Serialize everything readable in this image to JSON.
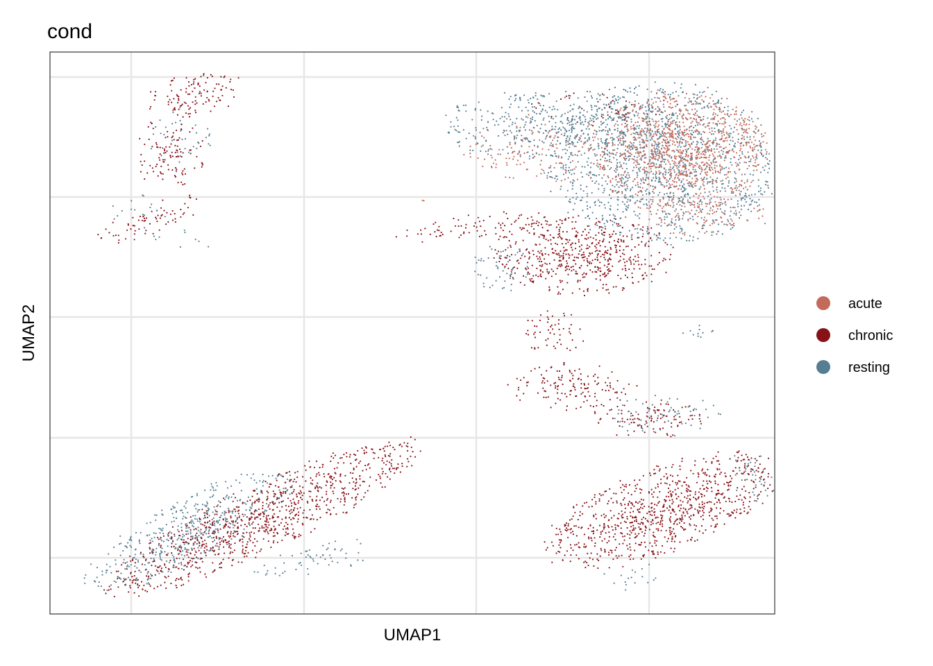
{
  "chart_data": {
    "type": "scatter",
    "title": "cond",
    "xlabel": "UMAP1",
    "ylabel": "UMAP2",
    "xlim": [
      -2.47,
      18.6
    ],
    "ylim": [
      -18.7,
      4.65
    ],
    "grid": true,
    "x_ticks_shown": false,
    "y_ticks_shown": false,
    "legend": {
      "position": "right",
      "entries": [
        {
          "label": "acute",
          "color": "#C46A5A"
        },
        {
          "label": "chronic",
          "color": "#871218"
        },
        {
          "label": "resting",
          "color": "#567E92"
        }
      ]
    },
    "series": [
      {
        "name": "resting",
        "color": "#567E92",
        "regions": [
          {
            "type": "ellipse",
            "cx": 1.3,
            "cy": 1.1,
            "rx": 0.9,
            "ry": 1.1,
            "rot": 0,
            "density": 0.25
          },
          {
            "type": "ellipse",
            "cx": 0.1,
            "cy": -2.0,
            "rx": 0.8,
            "ry": 0.7,
            "rot": 0,
            "density": 0.2
          },
          {
            "type": "ellipse",
            "cx": 1.6,
            "cy": -3.1,
            "rx": 1.0,
            "ry": 0.4,
            "rot": 0,
            "density": 0.15
          },
          {
            "type": "ellipse",
            "cx": 15.3,
            "cy": 0.0,
            "rx": 3.0,
            "ry": 3.0,
            "rot": 0,
            "density": 1.0
          },
          {
            "type": "ellipse",
            "cx": 12.3,
            "cy": 1.6,
            "rx": 3.2,
            "ry": 1.3,
            "rot": 0,
            "density": 0.7
          },
          {
            "type": "ellipse",
            "cx": 10.7,
            "cy": -4.3,
            "rx": 0.8,
            "ry": 0.9,
            "rot": 0,
            "density": 0.5
          },
          {
            "type": "ellipse",
            "cx": 16.2,
            "cy": -7.0,
            "rx": 0.6,
            "ry": 0.4,
            "rot": 0,
            "density": 0.3
          },
          {
            "type": "ellipse",
            "cx": 1.6,
            "cy": -15.2,
            "rx": 3.0,
            "ry": 1.2,
            "rot": -28,
            "density": 0.9
          },
          {
            "type": "ellipse",
            "cx": 5.2,
            "cy": -16.4,
            "rx": 1.6,
            "ry": 0.6,
            "rot": -10,
            "density": 0.4
          },
          {
            "type": "ellipse",
            "cx": 15.4,
            "cy": -10.4,
            "rx": 1.5,
            "ry": 0.8,
            "rot": 0,
            "density": 0.35
          },
          {
            "type": "ellipse",
            "cx": 18.0,
            "cy": -13.0,
            "rx": 0.8,
            "ry": 1.0,
            "rot": 0,
            "density": 0.4
          },
          {
            "type": "ellipse",
            "cx": 14.5,
            "cy": -17.2,
            "rx": 0.9,
            "ry": 0.6,
            "rot": 0,
            "density": 0.2
          }
        ]
      },
      {
        "name": "acute",
        "color": "#C46A5A",
        "regions": [
          {
            "type": "ellipse",
            "cx": 15.8,
            "cy": 0.5,
            "rx": 2.3,
            "ry": 2.3,
            "rot": 0,
            "density": 1.3
          },
          {
            "type": "ellipse",
            "cx": 16.4,
            "cy": -2.2,
            "rx": 1.8,
            "ry": 0.7,
            "rot": 0,
            "density": 0.5
          },
          {
            "type": "ellipse",
            "cx": 12.0,
            "cy": 0.6,
            "rx": 2.2,
            "ry": 1.3,
            "rot": 0,
            "density": 0.35
          },
          {
            "type": "ellipse",
            "cx": 8.5,
            "cy": -1.6,
            "rx": 0.5,
            "ry": 0.3,
            "rot": 0,
            "density": 0.1
          }
        ]
      },
      {
        "name": "chronic",
        "color": "#871218",
        "regions": [
          {
            "type": "ellipse",
            "cx": 1.8,
            "cy": 2.9,
            "rx": 1.3,
            "ry": 0.8,
            "rot": -10,
            "density": 0.7
          },
          {
            "type": "ellipse",
            "cx": 1.0,
            "cy": 0.5,
            "rx": 0.9,
            "ry": 1.4,
            "rot": 0,
            "density": 0.55
          },
          {
            "type": "ellipse",
            "cx": 0.5,
            "cy": -2.3,
            "rx": 1.6,
            "ry": 0.55,
            "rot": -20,
            "density": 0.5
          },
          {
            "type": "ellipse",
            "cx": 13.0,
            "cy": -3.8,
            "rx": 2.4,
            "ry": 1.5,
            "rot": 0,
            "density": 1.0
          },
          {
            "type": "ellipse",
            "cx": 9.9,
            "cy": -2.6,
            "rx": 2.2,
            "ry": 0.45,
            "rot": -8,
            "density": 0.5
          },
          {
            "type": "ellipse",
            "cx": 12.2,
            "cy": -7.0,
            "rx": 0.8,
            "ry": 0.9,
            "rot": 0,
            "density": 0.5
          },
          {
            "type": "ellipse",
            "cx": 12.7,
            "cy": -9.2,
            "rx": 1.7,
            "ry": 0.9,
            "rot": 0,
            "density": 0.6
          },
          {
            "type": "ellipse",
            "cx": 15.0,
            "cy": -10.6,
            "rx": 1.6,
            "ry": 0.7,
            "rot": 0,
            "density": 0.6
          },
          {
            "type": "ellipse",
            "cx": 3.7,
            "cy": -14.7,
            "rx": 4.5,
            "ry": 1.25,
            "rot": -25,
            "density": 1.1
          },
          {
            "type": "ellipse",
            "cx": 15.3,
            "cy": -14.4,
            "rx": 3.2,
            "ry": 1.6,
            "rot": -20,
            "density": 1.1
          },
          {
            "type": "ellipse",
            "cx": 14.0,
            "cy": 2.2,
            "rx": 2.5,
            "ry": 0.8,
            "rot": 0,
            "density": 0.15
          }
        ]
      }
    ]
  }
}
